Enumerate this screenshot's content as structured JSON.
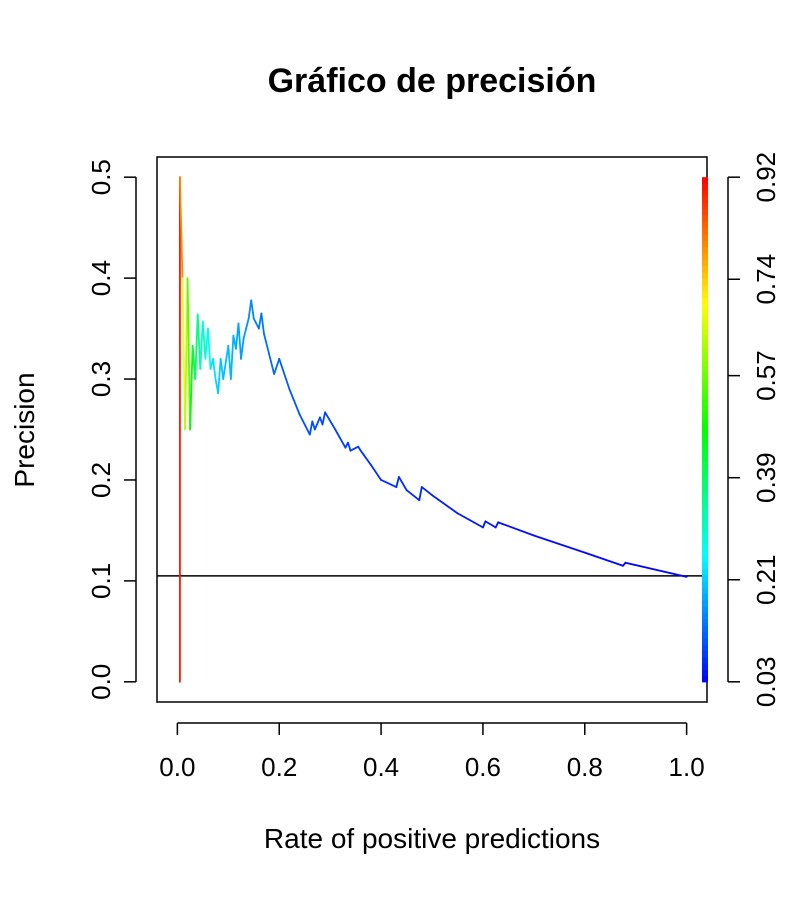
{
  "chart_data": {
    "type": "line",
    "title": "Gráfico de precisión",
    "xlabel": "Rate of positive predictions",
    "ylabel": "Precision",
    "xlim": [
      -0.04,
      1.04
    ],
    "ylim": [
      -0.02,
      0.52
    ],
    "x_ticks": [
      "0.0",
      "0.2",
      "0.4",
      "0.6",
      "0.8",
      "1.0"
    ],
    "y_ticks": [
      "0.0",
      "0.1",
      "0.2",
      "0.3",
      "0.4",
      "0.5"
    ],
    "colorbar": {
      "ticks": [
        "0.03",
        "0.21",
        "0.39",
        "0.57",
        "0.74",
        "0.92"
      ],
      "range": [
        0.03,
        0.92
      ]
    },
    "baseline": 0.105,
    "grid": false,
    "series": [
      {
        "x": [
          0.005,
          0.005,
          0.01,
          0.015,
          0.02,
          0.025,
          0.03,
          0.035,
          0.04,
          0.045,
          0.05,
          0.055,
          0.06,
          0.065,
          0.07,
          0.075,
          0.08,
          0.085,
          0.09,
          0.1,
          0.105,
          0.11,
          0.115,
          0.12,
          0.125,
          0.13,
          0.135,
          0.14,
          0.145,
          0.15,
          0.16,
          0.165,
          0.17,
          0.18,
          0.19,
          0.2,
          0.2,
          0.22,
          0.24,
          0.26,
          0.265,
          0.27,
          0.28,
          0.285,
          0.29,
          0.31,
          0.33,
          0.335,
          0.34,
          0.355,
          0.36,
          0.38,
          0.4,
          0.43,
          0.435,
          0.45,
          0.475,
          0.48,
          0.5,
          0.55,
          0.6,
          0.605,
          0.625,
          0.63,
          0.7,
          0.8,
          0.875,
          0.88,
          1.0
        ],
        "y": [
          0.0,
          0.5,
          0.4,
          0.25,
          0.4,
          0.25,
          0.333,
          0.3,
          0.364,
          0.31,
          0.357,
          0.32,
          0.35,
          0.31,
          0.32,
          0.3,
          0.286,
          0.32,
          0.3,
          0.333,
          0.3,
          0.343,
          0.33,
          0.355,
          0.32,
          0.34,
          0.35,
          0.36,
          0.378,
          0.36,
          0.35,
          0.365,
          0.345,
          0.325,
          0.305,
          0.32,
          0.32,
          0.29,
          0.265,
          0.245,
          0.258,
          0.25,
          0.262,
          0.255,
          0.267,
          0.25,
          0.232,
          0.237,
          0.229,
          0.233,
          0.229,
          0.215,
          0.2,
          0.193,
          0.203,
          0.19,
          0.18,
          0.193,
          0.185,
          0.167,
          0.153,
          0.159,
          0.153,
          0.158,
          0.145,
          0.128,
          0.115,
          0.118,
          0.104
        ],
        "cutoff": [
          0.92,
          0.88,
          0.72,
          0.66,
          0.6,
          0.5,
          0.45,
          0.4,
          0.36,
          0.32,
          0.3,
          0.28,
          0.26,
          0.24,
          0.23,
          0.22,
          0.21,
          0.205,
          0.2,
          0.195,
          0.19,
          0.185,
          0.18,
          0.175,
          0.17,
          0.165,
          0.16,
          0.155,
          0.15,
          0.145,
          0.14,
          0.135,
          0.13,
          0.125,
          0.12,
          0.115,
          0.115,
          0.11,
          0.105,
          0.1,
          0.098,
          0.096,
          0.094,
          0.092,
          0.09,
          0.088,
          0.085,
          0.083,
          0.081,
          0.079,
          0.077,
          0.075,
          0.072,
          0.069,
          0.067,
          0.065,
          0.062,
          0.06,
          0.058,
          0.054,
          0.05,
          0.049,
          0.047,
          0.046,
          0.042,
          0.037,
          0.034,
          0.033,
          0.03
        ]
      }
    ]
  }
}
